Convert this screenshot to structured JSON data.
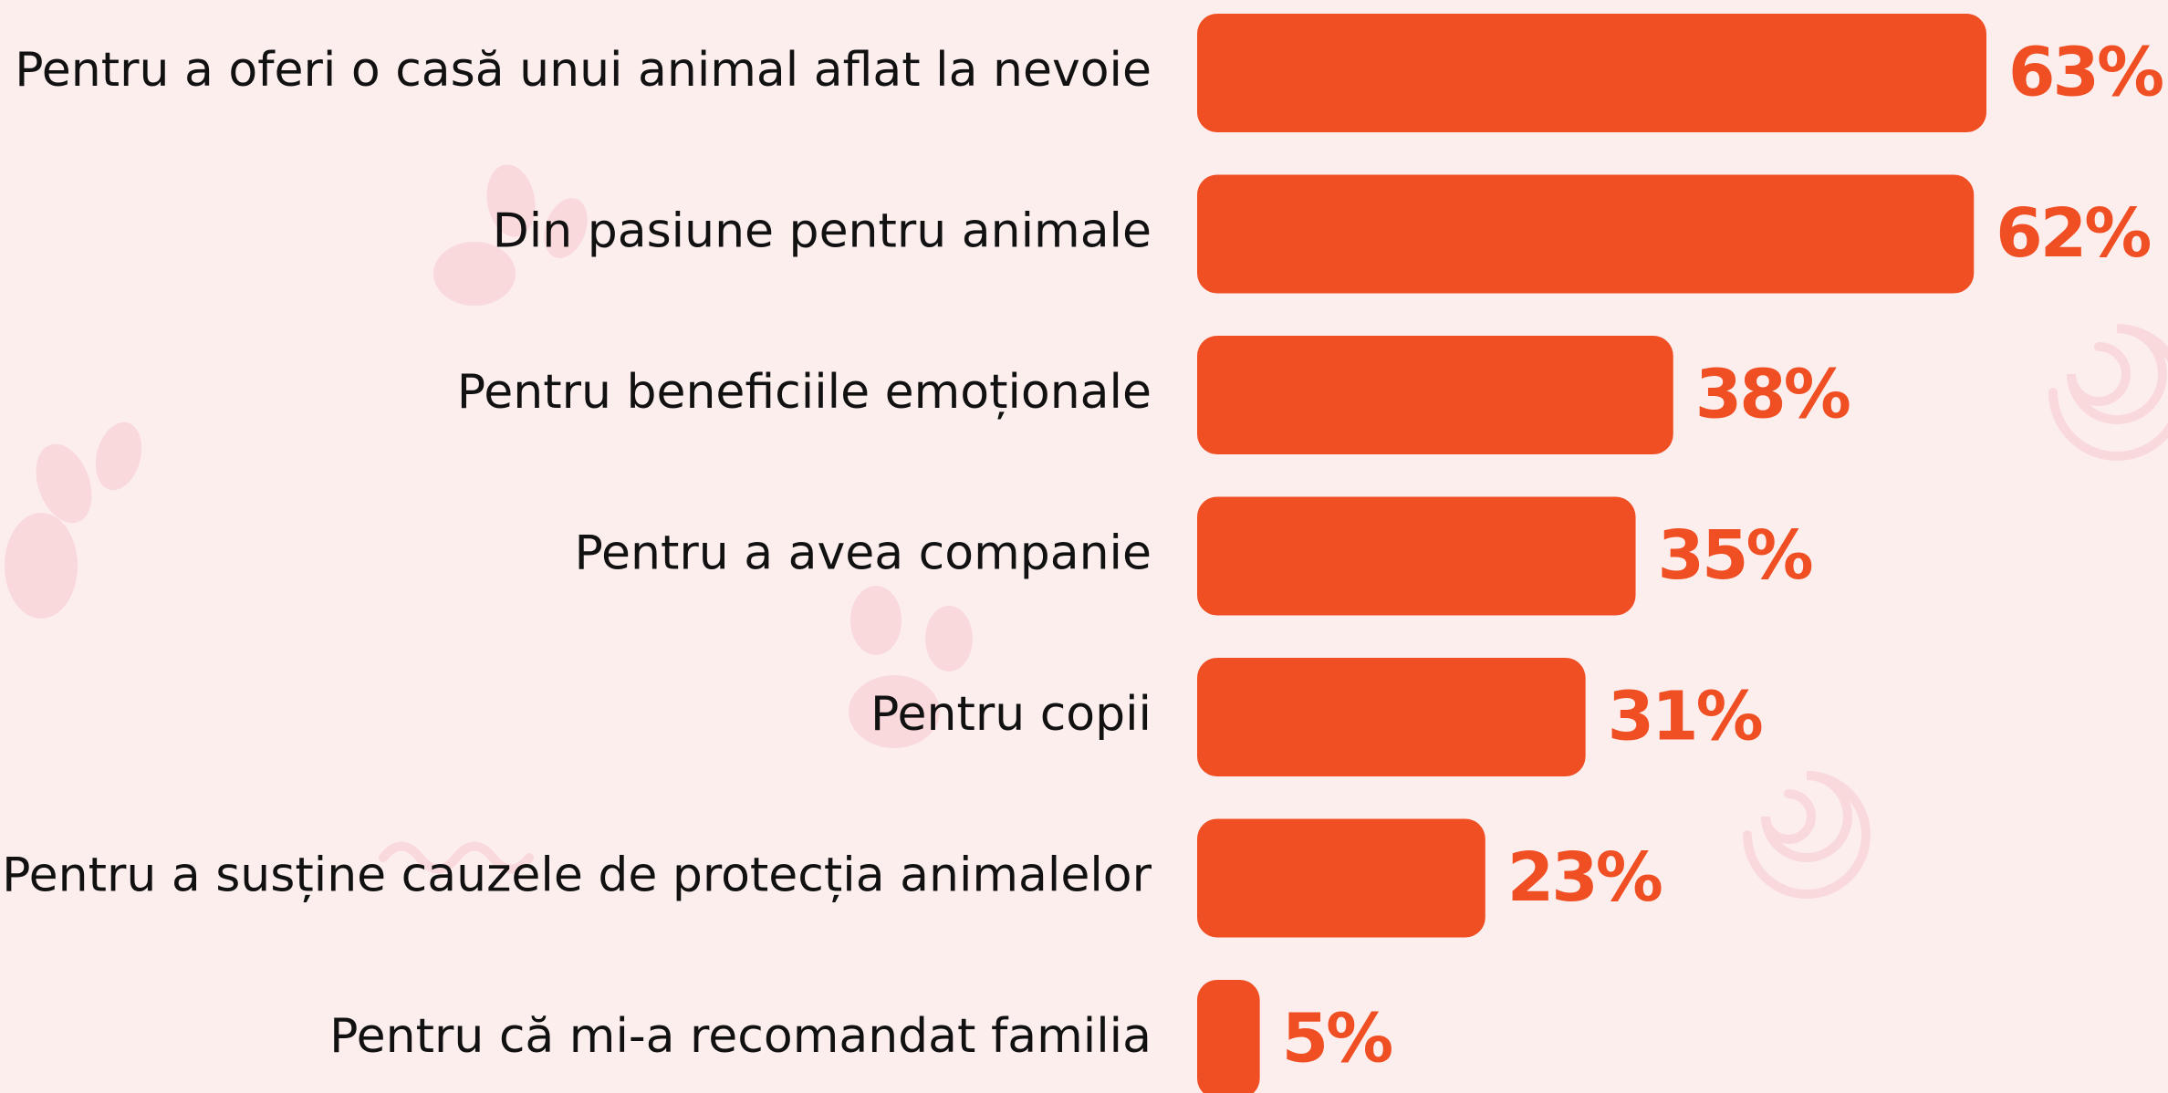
{
  "chart_data": {
    "type": "bar",
    "orientation": "horizontal",
    "color": "#f04e23",
    "categories": [
      "Pentru a oferi o casă unui animal aflat la nevoie",
      "Din pasiune pentru animale",
      "Pentru beneficiile emoționale",
      "Pentru a avea companie",
      "Pentru copii",
      "Pentru a susține cauzele de protecția animalelor",
      "Pentru că mi-a recomandat familia"
    ],
    "values": [
      63,
      62,
      38,
      35,
      31,
      23,
      5
    ],
    "value_labels": [
      "63%",
      "62%",
      "38%",
      "35%",
      "31%",
      "23%",
      "5%"
    ]
  }
}
